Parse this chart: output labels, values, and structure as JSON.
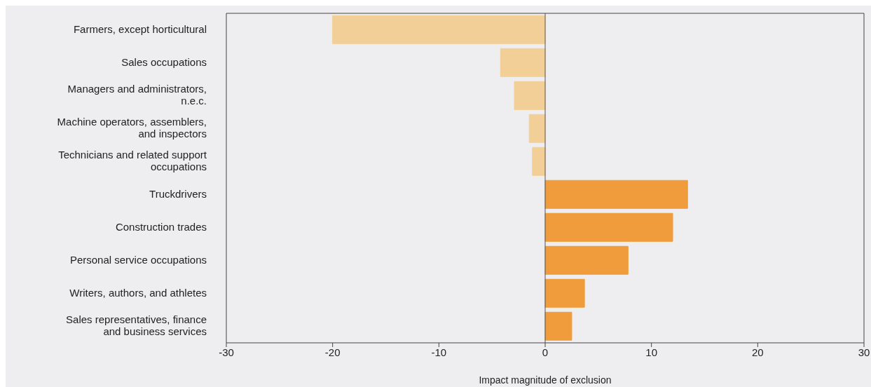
{
  "chart_data": {
    "type": "bar",
    "orientation": "horizontal",
    "xlabel": "Impact magnitude of exclusion",
    "categories": [
      "Farmers, except horticultural",
      "Sales occupations",
      "Managers and administrators, n.e.c.",
      "Machine operators, assemblers, and inspectors",
      "Technicians and related support occupations",
      "Truckdrivers",
      "Construction trades",
      "Personal service occupations",
      "Writers, authors, and athletes",
      "Sales representatives, finance and business services"
    ],
    "values": [
      -20.0,
      -4.2,
      -2.9,
      -1.5,
      -1.2,
      13.4,
      12.0,
      7.8,
      3.7,
      2.5
    ],
    "colors": [
      "#f3cf98",
      "#f3cf98",
      "#f3cf98",
      "#f3cf98",
      "#f3cf98",
      "#f09c3c",
      "#f09c3c",
      "#f09c3c",
      "#f09c3c",
      "#f09c3c"
    ],
    "xlim": [
      -30,
      30
    ],
    "xticks": [
      -30,
      -20,
      -10,
      0,
      10,
      20,
      30
    ],
    "ref_lines": [
      {
        "axis": "x",
        "value": 0,
        "color": "#555555"
      }
    ],
    "grid": false,
    "legend": false
  }
}
